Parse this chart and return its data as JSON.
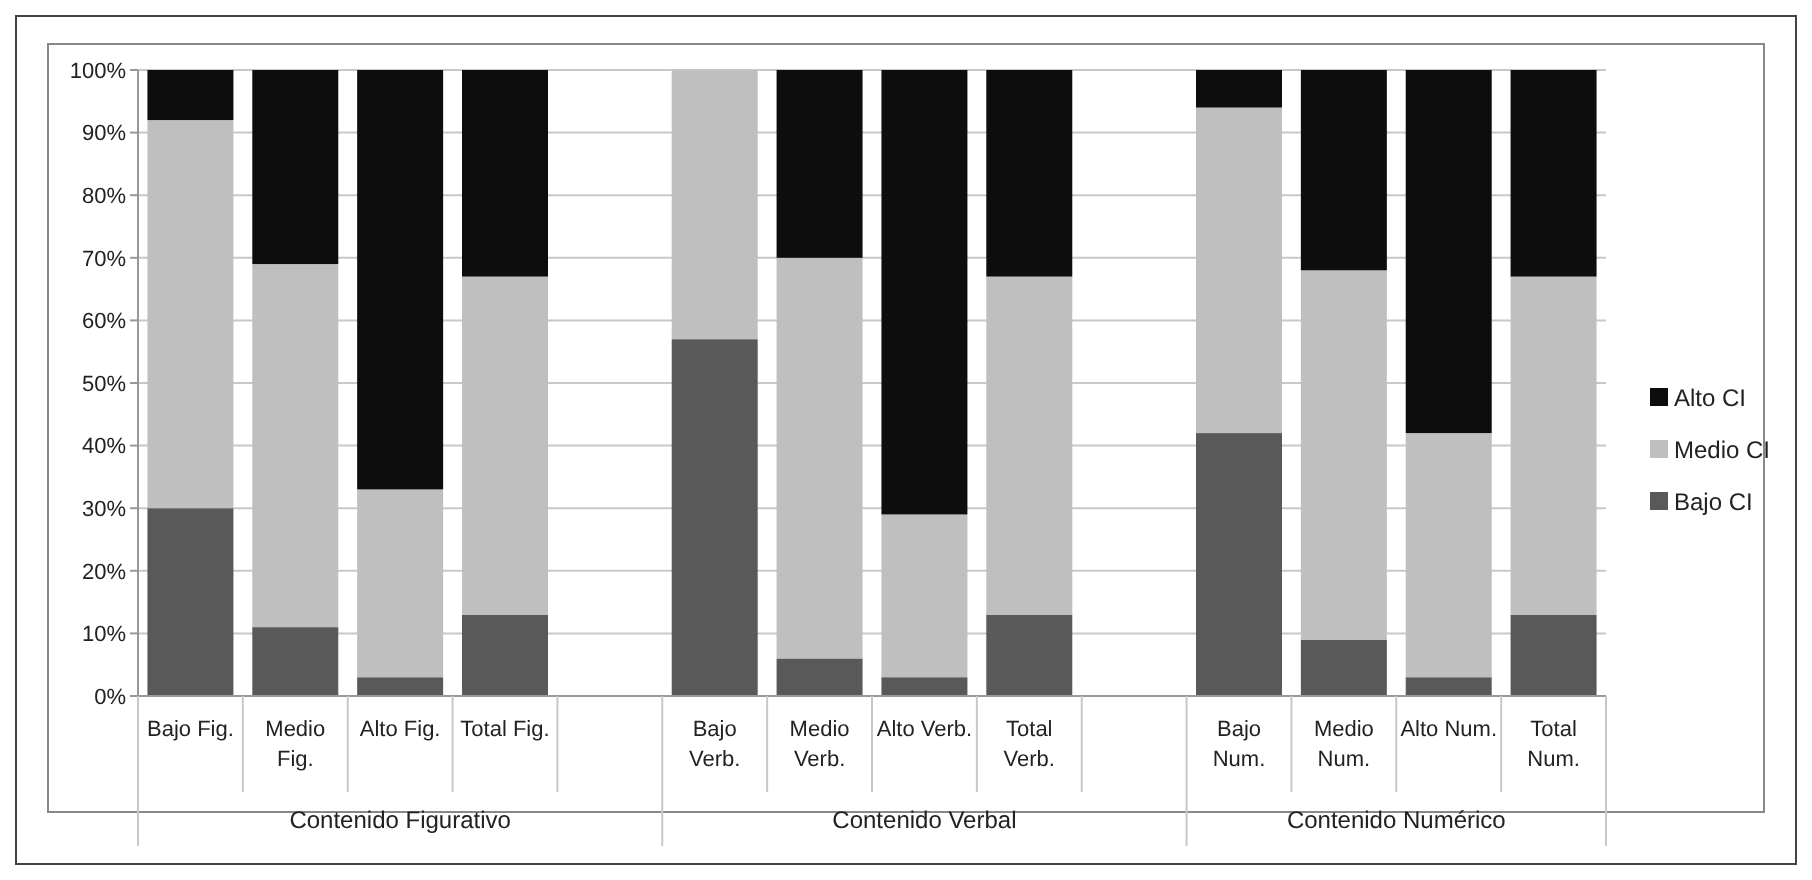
{
  "chart_data": {
    "type": "bar",
    "stacked": true,
    "categories": [
      "Bajo Fig.",
      "Medio Fig.",
      "Alto Fig.",
      "Total Fig.",
      null,
      "Bajo Verb.",
      "Medio Verb.",
      "Alto Verb.",
      "Total Verb.",
      null,
      "Bajo Num.",
      "Medio Num.",
      "Alto Num.",
      "Total Num."
    ],
    "series": [
      {
        "name": "Bajo CI",
        "color": "#595959",
        "values": [
          30,
          11,
          3,
          13,
          null,
          57,
          6,
          3,
          13,
          null,
          42,
          9,
          3,
          13
        ]
      },
      {
        "name": "Medio CI",
        "color": "#bfbfbf",
        "values": [
          62,
          58,
          30,
          54,
          null,
          43,
          64,
          26,
          54,
          null,
          52,
          59,
          39,
          54
        ]
      },
      {
        "name": "Alto CI",
        "color": "#0d0d0d",
        "values": [
          8,
          31,
          67,
          33,
          null,
          0,
          30,
          71,
          33,
          null,
          6,
          32,
          58,
          33
        ]
      }
    ],
    "ylim": [
      0,
      100
    ],
    "yticks": [
      {
        "value": 0,
        "label": "0%"
      },
      {
        "value": 10,
        "label": "10%"
      },
      {
        "value": 20,
        "label": "20%"
      },
      {
        "value": 30,
        "label": "30%"
      },
      {
        "value": 40,
        "label": "40%"
      },
      {
        "value": 50,
        "label": "50%"
      },
      {
        "value": 60,
        "label": "60%"
      },
      {
        "value": 70,
        "label": "70%"
      },
      {
        "value": 80,
        "label": "80%"
      },
      {
        "value": 90,
        "label": "90%"
      },
      {
        "value": 100,
        "label": "100%"
      }
    ],
    "grid": "y",
    "legend": "right",
    "annotations": [
      "Contenido Figurativo",
      "Contenido Verbal",
      "Contenido Numérico"
    ]
  }
}
